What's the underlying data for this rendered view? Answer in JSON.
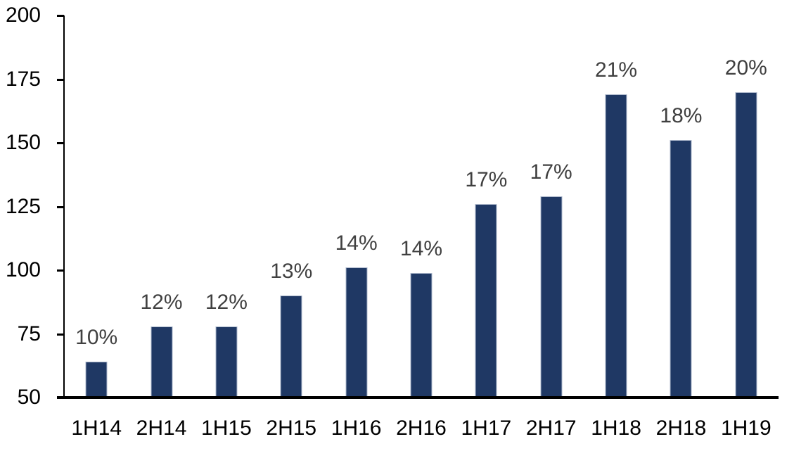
{
  "chart_data": {
    "type": "bar",
    "title": "",
    "xlabel": "",
    "ylabel": "",
    "categories": [
      "1H14",
      "2H14",
      "1H15",
      "2H15",
      "1H16",
      "2H16",
      "1H17",
      "2H17",
      "1H18",
      "2H18",
      "1H19"
    ],
    "values": [
      64,
      78,
      78,
      90,
      101,
      99,
      126,
      129,
      169,
      151,
      170
    ],
    "data_labels": [
      "10%",
      "12%",
      "12%",
      "13%",
      "14%",
      "14%",
      "17%",
      "17%",
      "21%",
      "18%",
      "20%"
    ],
    "ylim": [
      50,
      200
    ],
    "yticks": [
      200,
      175,
      150,
      125,
      100,
      75,
      50
    ],
    "grid": false,
    "legend_position": "none",
    "colors": {
      "bar_fill": "#1F3864",
      "bar_border": "#AEB9CC",
      "data_label_text": "#404040",
      "axis_text": "#000000",
      "axis_line": "#000000",
      "background": "#FFFFFF"
    }
  }
}
